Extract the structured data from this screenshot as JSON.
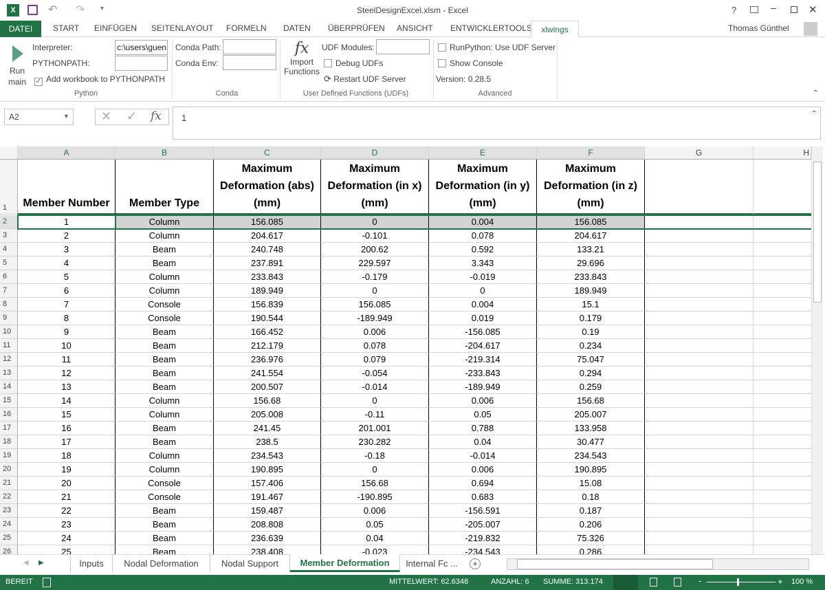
{
  "window": {
    "title": "SteelDesignExcel.xlsm - Excel",
    "user": "Thomas Günthel",
    "help": "?"
  },
  "ribbon_tabs": [
    "DATEI",
    "START",
    "EINFÜGEN",
    "SEITENLAYOUT",
    "FORMELN",
    "DATEN",
    "ÜBERPRÜFEN",
    "ANSICHT",
    "ENTWICKLERTOOLS",
    "xlwings"
  ],
  "active_ribbon_tab": "xlwings",
  "ribbon": {
    "run_main": "Run main",
    "run_label_1": "Run",
    "run_label_2": "main",
    "interpreter_label": "Interpreter:",
    "interpreter_value": "c:\\users\\guen",
    "pythonpath_label": "PYTHONPATH:",
    "pythonpath_value": "",
    "add_workbook": "Add workbook to PYTHONPATH",
    "add_workbook_checked": true,
    "python_group": "Python",
    "conda_path_label": "Conda Path:",
    "conda_env_label": "Conda Env:",
    "conda_group": "Conda",
    "import_1": "Import",
    "import_2": "Functions",
    "udf_modules_label": "UDF Modules:",
    "debug_udfs": "Debug UDFs",
    "restart_udf": "Restart UDF Server",
    "udf_group": "User Defined Functions (UDFs)",
    "runpython_udf": "RunPython: Use UDF Server",
    "show_console": "Show Console",
    "version": "Version: 0.28.5",
    "advanced_group": "Advanced"
  },
  "formula_bar": {
    "name_box": "A2",
    "formula": "1"
  },
  "columns": [
    "A",
    "B",
    "C",
    "D",
    "E",
    "F",
    "G",
    "H"
  ],
  "header_row": [
    "Member Number",
    "Member Type",
    "Maximum Deformation (abs) (mm)",
    "Maximum Deformation (in x) (mm)",
    "Maximum Deformation (in y) (mm)",
    "Maximum Deformation (in z) (mm)"
  ],
  "rows": [
    [
      "1",
      "Column",
      "156.085",
      "0",
      "0.004",
      "156.085"
    ],
    [
      "2",
      "Column",
      "204.617",
      "-0.101",
      "0.078",
      "204.617"
    ],
    [
      "3",
      "Beam",
      "240.748",
      "200.62",
      "0.592",
      "133.21"
    ],
    [
      "4",
      "Beam",
      "237.891",
      "229.597",
      "3.343",
      "29.696"
    ],
    [
      "5",
      "Column",
      "233.843",
      "-0.179",
      "-0.019",
      "233.843"
    ],
    [
      "6",
      "Column",
      "189.949",
      "0",
      "0",
      "189.949"
    ],
    [
      "7",
      "Console",
      "156.839",
      "156.085",
      "0.004",
      "15.1"
    ],
    [
      "8",
      "Console",
      "190.544",
      "-189.949",
      "0.019",
      "0.179"
    ],
    [
      "9",
      "Beam",
      "166.452",
      "0.006",
      "-156.085",
      "0.19"
    ],
    [
      "10",
      "Beam",
      "212.179",
      "0.078",
      "-204.617",
      "0.234"
    ],
    [
      "11",
      "Beam",
      "236.976",
      "0.079",
      "-219.314",
      "75.047"
    ],
    [
      "12",
      "Beam",
      "241.554",
      "-0.054",
      "-233.843",
      "0.294"
    ],
    [
      "13",
      "Beam",
      "200.507",
      "-0.014",
      "-189.949",
      "0.259"
    ],
    [
      "14",
      "Column",
      "156.68",
      "0",
      "0.006",
      "156.68"
    ],
    [
      "15",
      "Column",
      "205.008",
      "-0.11",
      "0.05",
      "205.007"
    ],
    [
      "16",
      "Beam",
      "241.45",
      "201.001",
      "0.788",
      "133.958"
    ],
    [
      "17",
      "Beam",
      "238.5",
      "230.282",
      "0.04",
      "30.477"
    ],
    [
      "18",
      "Column",
      "234.543",
      "-0.18",
      "-0.014",
      "234.543"
    ],
    [
      "19",
      "Column",
      "190.895",
      "0",
      "0.006",
      "190.895"
    ],
    [
      "20",
      "Console",
      "157.406",
      "156.68",
      "0.694",
      "15.08"
    ],
    [
      "21",
      "Console",
      "191.467",
      "-190.895",
      "0.683",
      "0.18"
    ],
    [
      "22",
      "Beam",
      "159.487",
      "0.006",
      "-156.591",
      "0.187"
    ],
    [
      "23",
      "Beam",
      "208.808",
      "0.05",
      "-205.007",
      "0.206"
    ],
    [
      "24",
      "Beam",
      "236.639",
      "0.04",
      "-219.832",
      "75.326"
    ],
    [
      "25",
      "Beam",
      "238.408",
      "-0.023",
      "-234.543",
      "0.286"
    ]
  ],
  "sheet_tabs": [
    "Inputs",
    "Nodal Deformation",
    "Nodal Support",
    "Member Deformation",
    "Internal Fc ..."
  ],
  "active_sheet": "Member Deformation",
  "status": {
    "ready": "BEREIT",
    "average": "MITTELWERT: 62.6348",
    "count": "ANZAHL: 6",
    "sum": "SUMME: 313.174",
    "zoom": "100 %"
  },
  "colors": {
    "accent": "#217346",
    "selection": "#d2d2d2"
  }
}
